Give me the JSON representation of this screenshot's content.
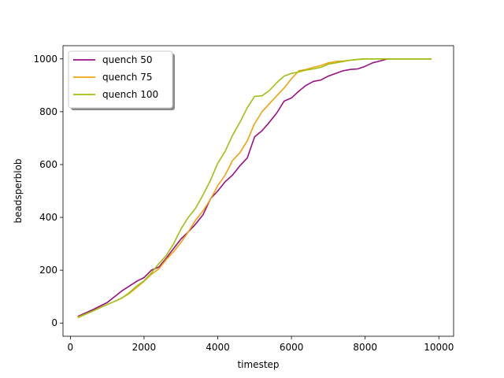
{
  "chart_data": {
    "type": "line",
    "title": "",
    "xlabel": "timestep",
    "ylabel": "beadsperblob",
    "xlim": [
      -200,
      10400
    ],
    "ylim": [
      -50,
      1050
    ],
    "xticks": [
      0,
      2000,
      4000,
      6000,
      8000,
      10000
    ],
    "yticks": [
      0,
      200,
      400,
      600,
      800,
      1000
    ],
    "grid": false,
    "legend_position": "top-left",
    "series": [
      {
        "name": "quench 50",
        "color": "#990f85",
        "x": [
          200,
          600,
          1000,
          1200,
          1400,
          1600,
          1800,
          2000,
          2200,
          2400,
          2600,
          2800,
          3000,
          3200,
          3400,
          3600,
          3800,
          4000,
          4200,
          4400,
          4600,
          4800,
          5000,
          5200,
          5400,
          5600,
          5800,
          6000,
          6200,
          6400,
          6600,
          6800,
          7000,
          7200,
          7400,
          7600,
          7800,
          8000,
          8200,
          8400,
          8600,
          8800,
          9000,
          9200,
          9400,
          9600,
          9800
        ],
        "y": [
          25,
          50,
          78,
          100,
          122,
          140,
          158,
          172,
          200,
          212,
          245,
          282,
          318,
          345,
          375,
          410,
          470,
          500,
          535,
          560,
          595,
          625,
          705,
          728,
          760,
          795,
          840,
          852,
          878,
          900,
          915,
          920,
          935,
          945,
          955,
          960,
          962,
          972,
          985,
          992,
          1000,
          1000,
          1000,
          1000,
          1000,
          1000,
          1000
        ]
      },
      {
        "name": "quench 75",
        "color": "#f0a20e",
        "x": [
          200,
          600,
          1000,
          1200,
          1400,
          1600,
          1800,
          2000,
          2200,
          2400,
          2600,
          2800,
          3000,
          3200,
          3400,
          3600,
          3800,
          4000,
          4200,
          4400,
          4600,
          4800,
          5000,
          5200,
          5400,
          5600,
          5800,
          6000,
          6200,
          6400,
          6600,
          6800,
          7000,
          7200,
          7400,
          7600,
          7800,
          8000,
          8200,
          8400,
          8600,
          8800,
          9000,
          9200,
          9400,
          9600,
          9800
        ],
        "y": [
          22,
          45,
          70,
          82,
          95,
          112,
          135,
          158,
          185,
          205,
          240,
          270,
          305,
          345,
          390,
          425,
          468,
          520,
          560,
          615,
          645,
          690,
          755,
          800,
          830,
          860,
          890,
          925,
          955,
          960,
          968,
          975,
          985,
          990,
          992,
          995,
          998,
          1000,
          1000,
          1000,
          1000,
          1000,
          1000,
          1000,
          1000,
          1000,
          1000
        ]
      },
      {
        "name": "quench 100",
        "color": "#9dc10e",
        "x": [
          200,
          600,
          1000,
          1200,
          1400,
          1600,
          1800,
          2000,
          2200,
          2400,
          2600,
          2800,
          3000,
          3200,
          3400,
          3600,
          3800,
          4000,
          4200,
          4400,
          4600,
          4800,
          5000,
          5200,
          5400,
          5600,
          5800,
          6000,
          6200,
          6400,
          6600,
          6800,
          7000,
          7200,
          7400,
          7600,
          7800,
          8000,
          8200,
          8400,
          8600,
          8800,
          9000,
          9200,
          9400,
          9600,
          9800
        ],
        "y": [
          20,
          45,
          70,
          82,
          95,
          115,
          140,
          160,
          190,
          225,
          255,
          300,
          355,
          400,
          435,
          485,
          540,
          605,
          650,
          710,
          760,
          815,
          858,
          860,
          880,
          910,
          935,
          945,
          950,
          958,
          962,
          968,
          980,
          985,
          990,
          995,
          998,
          1000,
          1000,
          1000,
          1000,
          1000,
          1000,
          1000,
          1000,
          1000,
          1000
        ]
      }
    ]
  }
}
